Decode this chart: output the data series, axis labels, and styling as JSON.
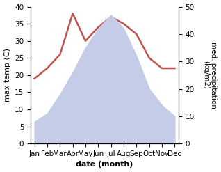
{
  "months": [
    "Jan",
    "Feb",
    "Mar",
    "Apr",
    "May",
    "Jun",
    "Jul",
    "Aug",
    "Sep",
    "Oct",
    "Nov",
    "Dec"
  ],
  "x": [
    0,
    1,
    2,
    3,
    4,
    5,
    6,
    7,
    8,
    9,
    10,
    11
  ],
  "temperature": [
    19,
    22,
    26,
    38,
    30,
    34,
    37,
    35,
    32,
    25,
    22,
    22
  ],
  "precipitation": [
    8,
    11,
    18,
    26,
    35,
    42,
    47,
    42,
    32,
    20,
    14,
    10
  ],
  "temp_color": "#c0504d",
  "precip_fill_color": "#c5cce8",
  "ylabel_left": "max temp (C)",
  "ylabel_right": "med. precipitation\n(kg/m2)",
  "xlabel": "date (month)",
  "ylim_left": [
    0,
    40
  ],
  "ylim_right": [
    0,
    50
  ],
  "label_fontsize": 8,
  "tick_fontsize": 7.5
}
